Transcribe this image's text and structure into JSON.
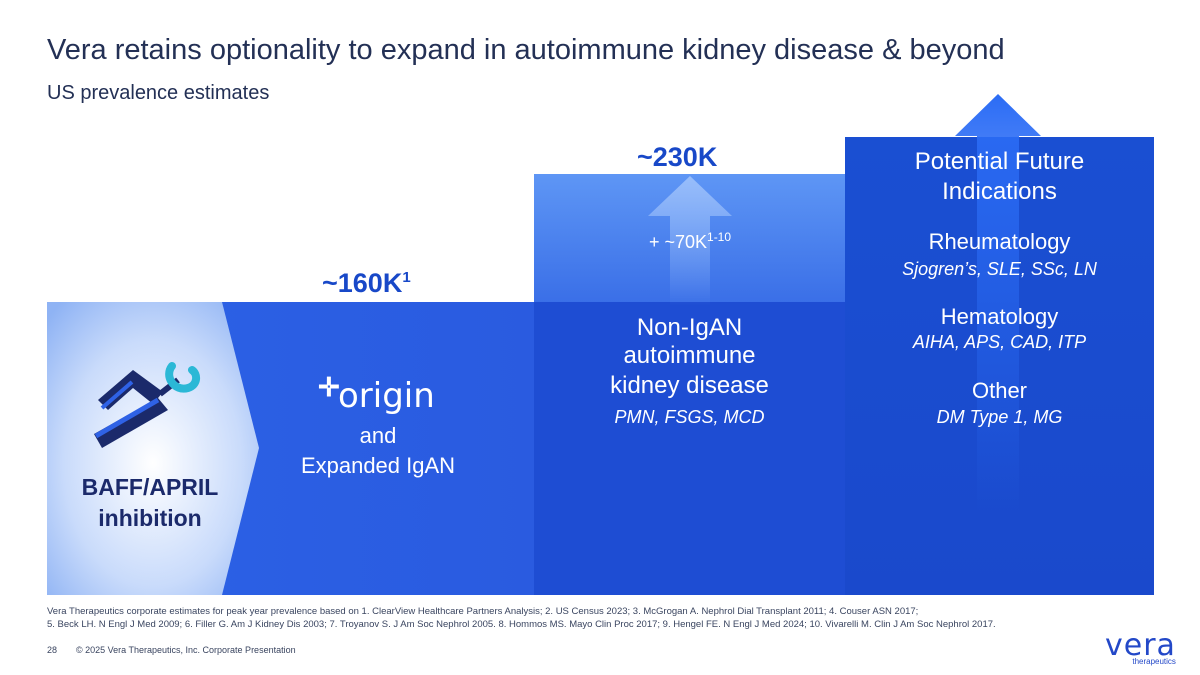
{
  "header": {
    "title": "Vera retains optionality to expand in autoimmune kidney disease & beyond",
    "subtitle": "US prevalence estimates"
  },
  "stage1": {
    "value": "~160K",
    "value_sup": "1",
    "label": "BAFF/APRIL inhibition",
    "origin_logo": "origin",
    "origin_sub1": "and",
    "origin_sub2": "Expanded IgAN"
  },
  "stage2": {
    "value": "~230K",
    "increment": "+ ~70K",
    "increment_sup": "1-10",
    "line1": "Non-IgAN",
    "line2": "autoimmune",
    "line3": "kidney disease",
    "detail": "PMN, FSGS, MCD"
  },
  "stage3": {
    "heading1": "Potential Future",
    "heading2": "Indications",
    "items": [
      {
        "name": "Rheumatology",
        "detail": "Sjogren’s, SLE, SSc, LN"
      },
      {
        "name": "Hematology",
        "detail": "AIHA, APS, CAD, ITP"
      },
      {
        "name": "Other",
        "detail": "DM Type 1, MG"
      }
    ]
  },
  "footer": {
    "refs_line1": "Vera Therapeutics corporate estimates for peak year prevalence based on 1. ClearView Healthcare Partners Analysis; 2. US Census 2023; 3. McGrogan A. Nephrol Dial Transplant 2011; 4. Couser ASN 2017;",
    "refs_line2": "5. Beck LH. N Engl J Med 2009; 6. Filler G. Am J Kidney Dis 2003; 7. Troyanov S. J Am Soc Nephrol 2005. 8. Hommos MS. Mayo Clin Proc 2017; 9. Hengel FE. N Engl J Med 2024; 10. Vivarelli M. Clin J Am Soc Nephrol 2017.",
    "page": "28",
    "copyright": "© 2025 Vera Therapeutics, Inc. Corporate Presentation"
  },
  "logo": {
    "wordmark": "vera",
    "tagline": "therapeutics"
  },
  "colors": {
    "primary": "#1e4dd3",
    "accent": "#2bb8d6",
    "title": "#233055"
  }
}
